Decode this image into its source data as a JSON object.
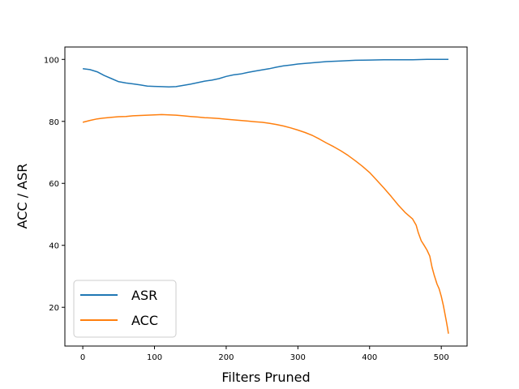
{
  "chart_data": {
    "type": "line",
    "title": "",
    "xlabel": "Filters Pruned",
    "ylabel": "ACC / ASR",
    "xlim": [
      -25,
      536
    ],
    "ylim": [
      7.5,
      104
    ],
    "xticks": [
      0,
      100,
      200,
      300,
      400,
      500
    ],
    "yticks": [
      20,
      40,
      60,
      80,
      100
    ],
    "grid": false,
    "legend": "lower-left",
    "series": [
      {
        "name": "ASR",
        "color": "#1f77b4",
        "x": [
          0,
          10,
          20,
          30,
          40,
          50,
          60,
          70,
          80,
          90,
          100,
          110,
          120,
          130,
          140,
          150,
          160,
          170,
          180,
          190,
          200,
          210,
          220,
          230,
          240,
          250,
          260,
          270,
          280,
          290,
          300,
          320,
          340,
          360,
          380,
          400,
          420,
          440,
          460,
          480,
          500,
          510
        ],
        "y": [
          97.0,
          96.7,
          96.0,
          94.8,
          93.8,
          92.8,
          92.4,
          92.1,
          91.8,
          91.4,
          91.3,
          91.2,
          91.1,
          91.2,
          91.6,
          92.0,
          92.5,
          93.0,
          93.3,
          93.8,
          94.5,
          95.0,
          95.3,
          95.8,
          96.2,
          96.6,
          97.0,
          97.5,
          97.9,
          98.2,
          98.5,
          98.9,
          99.3,
          99.5,
          99.7,
          99.8,
          99.9,
          99.9,
          99.9,
          100.0,
          100.0,
          100.0
        ]
      },
      {
        "name": "ACC",
        "color": "#ff7f0e",
        "x": [
          0,
          10,
          20,
          30,
          40,
          50,
          60,
          70,
          80,
          90,
          100,
          110,
          120,
          130,
          140,
          150,
          160,
          170,
          180,
          190,
          200,
          210,
          220,
          230,
          240,
          250,
          260,
          270,
          280,
          290,
          300,
          310,
          320,
          330,
          340,
          350,
          360,
          370,
          380,
          390,
          400,
          410,
          420,
          430,
          440,
          450,
          460,
          465,
          468,
          472,
          476,
          480,
          484,
          487,
          490,
          494,
          497,
          500,
          503,
          505,
          507,
          509,
          510
        ],
        "y": [
          79.7,
          80.3,
          80.8,
          81.1,
          81.3,
          81.5,
          81.6,
          81.8,
          81.9,
          82.0,
          82.1,
          82.2,
          82.1,
          82.0,
          81.8,
          81.6,
          81.4,
          81.2,
          81.1,
          80.9,
          80.7,
          80.5,
          80.3,
          80.1,
          79.9,
          79.7,
          79.4,
          79.0,
          78.5,
          77.9,
          77.2,
          76.4,
          75.5,
          74.3,
          73.0,
          71.8,
          70.5,
          69.0,
          67.3,
          65.5,
          63.5,
          61.0,
          58.5,
          55.8,
          53.0,
          50.5,
          48.5,
          46.5,
          44.0,
          41.5,
          40.0,
          38.5,
          36.5,
          33.0,
          30.5,
          27.5,
          26.0,
          23.5,
          20.5,
          18.0,
          15.5,
          13.0,
          11.5
        ]
      }
    ]
  }
}
